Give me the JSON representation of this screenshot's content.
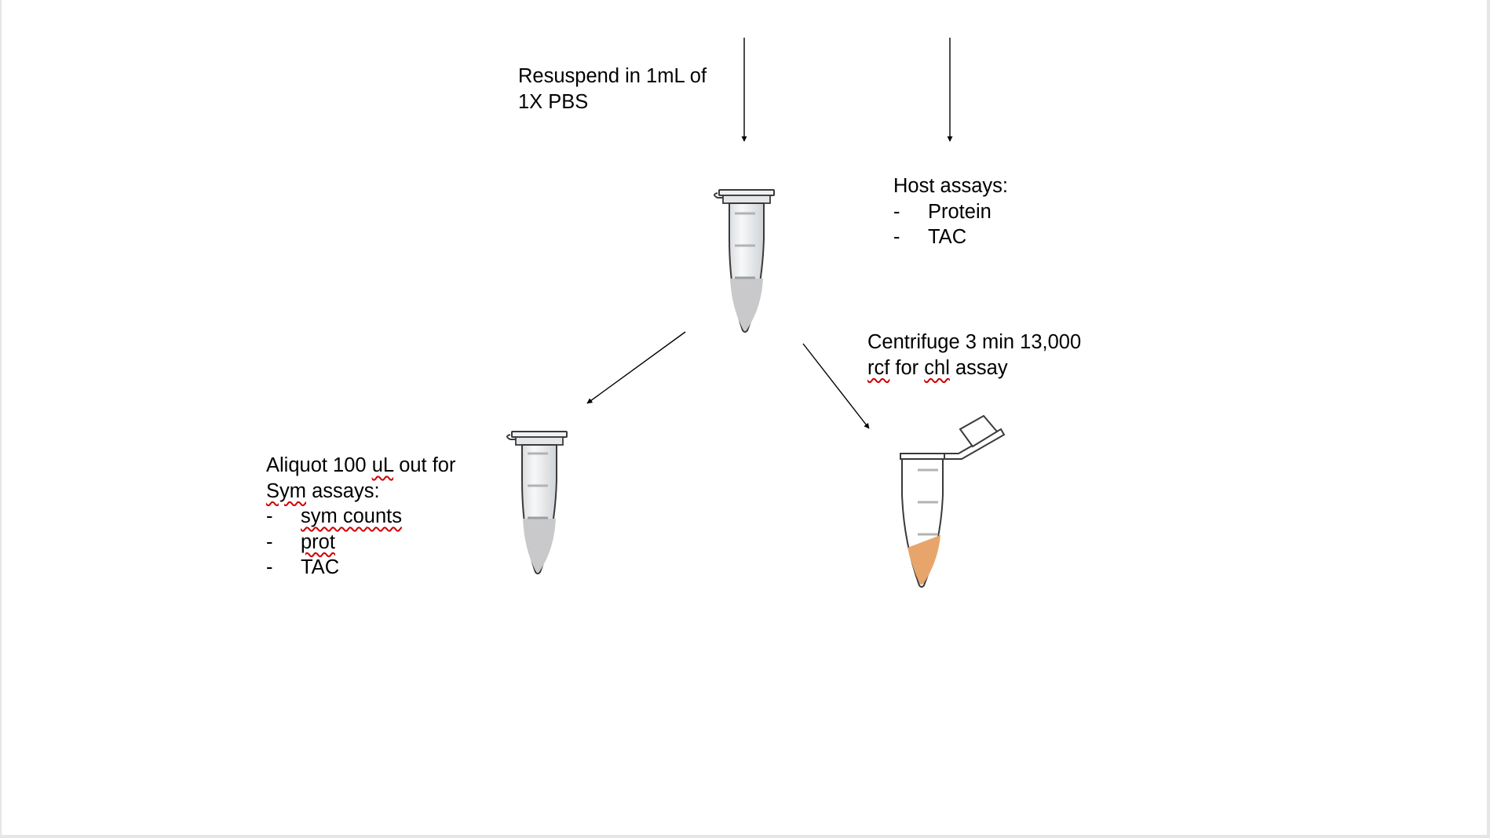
{
  "labels": {
    "resuspend": {
      "lines": [
        "Resuspend in 1mL of",
        "1X PBS"
      ]
    },
    "host": {
      "title": "Host assays:",
      "dash": "-",
      "items": [
        "Protein",
        "TAC"
      ]
    },
    "centrifuge": {
      "line1": "Centrifuge 3 min 13,000",
      "line2_word1": "rcf",
      "line2_word2": " for ",
      "line2_word3": "chl",
      "line2_word4": " assay"
    },
    "aliquot": {
      "line1_a": "Aliquot 100 ",
      "line1_b": "uL",
      "line1_c": " out for",
      "line2_a": "Sym",
      "line2_b": " assays:",
      "dash": "-",
      "items": [
        "sym counts",
        "prot",
        "TAC"
      ]
    }
  },
  "colors": {
    "tube_liquid": "#c9c9cb",
    "pellet": "#e8a56b",
    "tube_outline": "#3a3a3a",
    "spellcheck": "#d00000"
  },
  "icons": [
    "microcentrifuge-tube-icon",
    "open-microcentrifuge-tube-icon",
    "arrow"
  ]
}
